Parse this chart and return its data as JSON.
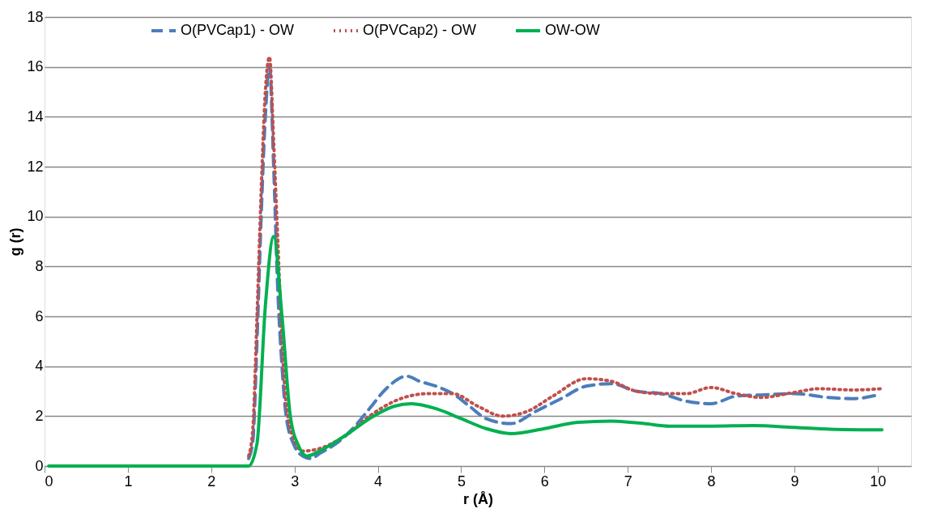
{
  "chart_data": {
    "type": "line",
    "xlabel": "r (Å)",
    "ylabel": "g (r)",
    "xlim": [
      0,
      10.4
    ],
    "xticks": [
      0,
      1,
      2,
      3,
      4,
      5,
      6,
      7,
      8,
      9,
      10
    ],
    "ylim": [
      0,
      18
    ],
    "yticks": [
      0,
      2,
      4,
      6,
      8,
      10,
      12,
      14,
      16,
      18
    ],
    "grid": "y",
    "legend": "top",
    "marker": "none",
    "series": [
      {
        "name": "O(PVCap1) - OW",
        "color": "#4a7ebb",
        "line_style": "dashed",
        "x": [
          2.45,
          2.5,
          2.55,
          2.6,
          2.65,
          2.7,
          2.75,
          2.8,
          2.85,
          2.9,
          3.0,
          3.1,
          3.2,
          3.3,
          3.5,
          3.7,
          3.9,
          4.1,
          4.35,
          4.5,
          4.7,
          4.9,
          5.1,
          5.3,
          5.6,
          5.9,
          6.2,
          6.5,
          6.8,
          7.1,
          7.4,
          7.7,
          8.0,
          8.3,
          8.6,
          9.0,
          9.4,
          9.7,
          10.0
        ],
        "values": [
          0.3,
          1,
          5,
          10,
          14,
          16,
          12,
          7,
          4,
          2,
          0.8,
          0.4,
          0.3,
          0.5,
          0.9,
          1.5,
          2.3,
          3.1,
          3.6,
          3.4,
          3.2,
          2.9,
          2.4,
          1.9,
          1.7,
          2.2,
          2.7,
          3.2,
          3.3,
          3.0,
          2.9,
          2.6,
          2.5,
          2.8,
          2.85,
          2.9,
          2.75,
          2.7,
          2.85
        ]
      },
      {
        "name": "O(PVCap2) - OW",
        "color": "#c0504d",
        "line_style": "dotted",
        "x": [
          2.45,
          2.5,
          2.55,
          2.6,
          2.65,
          2.7,
          2.75,
          2.8,
          2.85,
          2.9,
          3.0,
          3.1,
          3.3,
          3.6,
          3.9,
          4.2,
          4.6,
          4.9,
          5.2,
          5.5,
          5.8,
          6.1,
          6.5,
          6.8,
          7.1,
          7.4,
          7.7,
          8.0,
          8.3,
          8.6,
          9.0,
          9.3,
          9.7,
          10.05
        ],
        "values": [
          0.4,
          1.5,
          6,
          11,
          15,
          16.4,
          13,
          9,
          5,
          2.5,
          1,
          0.6,
          0.7,
          1.2,
          2.0,
          2.6,
          2.9,
          2.9,
          2.4,
          2.0,
          2.2,
          2.8,
          3.5,
          3.4,
          3.0,
          2.9,
          2.9,
          3.15,
          2.9,
          2.75,
          2.95,
          3.1,
          3.05,
          3.1
        ]
      },
      {
        "name": "OW-OW",
        "color": "#00b050",
        "line_style": "solid",
        "x": [
          0.05,
          0.5,
          1,
          1.5,
          2,
          2.45,
          2.55,
          2.65,
          2.75,
          2.85,
          2.95,
          3.05,
          3.15,
          3.3,
          3.6,
          3.9,
          4.2,
          4.4,
          4.7,
          5.0,
          5.3,
          5.6,
          6.0,
          6.4,
          6.8,
          7.2,
          7.5,
          8.0,
          8.5,
          9.0,
          9.5,
          10.05
        ],
        "values": [
          0,
          0,
          0,
          0,
          0,
          0,
          0.9,
          6.4,
          9.2,
          6,
          2,
          0.8,
          0.4,
          0.6,
          1.2,
          1.9,
          2.4,
          2.5,
          2.3,
          1.9,
          1.5,
          1.3,
          1.5,
          1.75,
          1.8,
          1.7,
          1.6,
          1.6,
          1.62,
          1.55,
          1.47,
          1.45
        ]
      }
    ]
  }
}
